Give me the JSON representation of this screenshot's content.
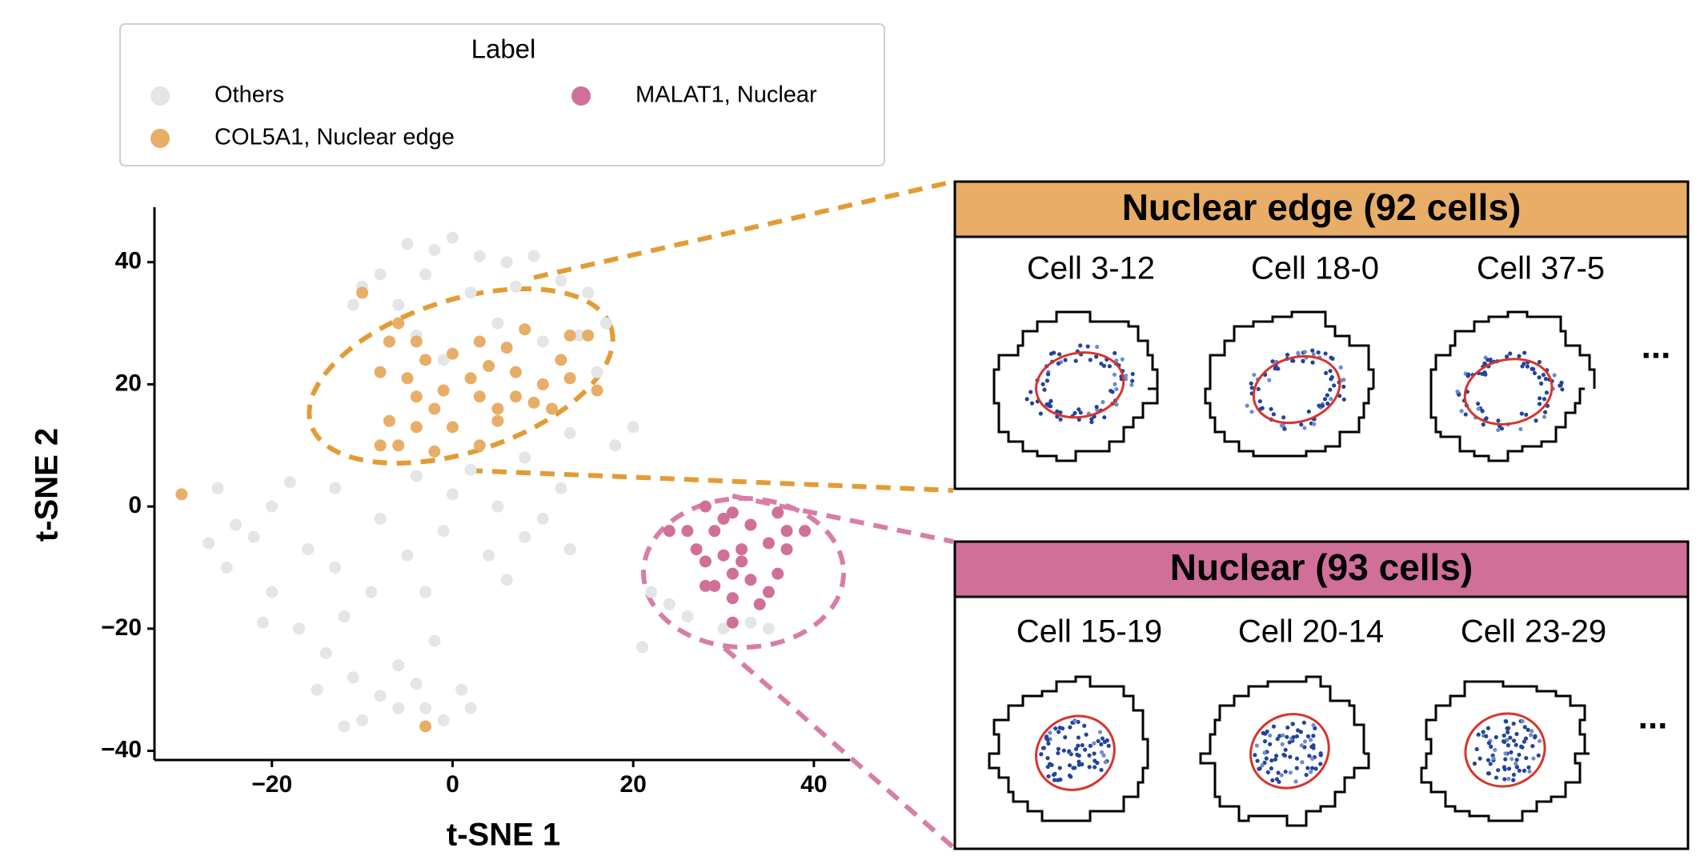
{
  "chart_data": {
    "type": "scatter",
    "xlabel": "t-SNE 1",
    "ylabel": "t-SNE 2",
    "legend_title": "Label",
    "xlim": [
      -33,
      44
    ],
    "ylim": [
      -41.5,
      49
    ],
    "xticks": [
      {
        "value": -20,
        "label": "−20"
      },
      0,
      20,
      40
    ],
    "yticks": [
      {
        "value": -40,
        "label": "−40"
      },
      {
        "value": -20,
        "label": "−20"
      },
      0,
      20,
      40
    ],
    "series": [
      {
        "name": "Others",
        "color": "#e3e5e6",
        "x": [
          -5,
          -2,
          0,
          3,
          6,
          9,
          -8,
          -10,
          -3,
          12,
          15,
          -11,
          7,
          -6,
          2,
          17,
          14,
          -4,
          5,
          10,
          -1,
          16,
          20,
          18,
          13,
          8,
          2,
          -4,
          -13,
          0,
          5,
          10,
          12,
          -1,
          4,
          -5,
          -26,
          -24,
          -22,
          -20,
          -18,
          -16,
          -13,
          -25,
          -20,
          -17,
          -12,
          -9,
          -14,
          -11,
          -8,
          -6,
          -3,
          -10,
          -12,
          -6,
          -2,
          -4,
          1,
          2,
          -1,
          -15,
          -21,
          -27,
          -3,
          8,
          22,
          24,
          26,
          33,
          35,
          30,
          21,
          13,
          -8,
          6
        ],
        "values": [
          43,
          42,
          44,
          41,
          40,
          41,
          38,
          36,
          38,
          37,
          35,
          33,
          36,
          33,
          35,
          30,
          28,
          28,
          30,
          27,
          24,
          22,
          13,
          10,
          12,
          8,
          6,
          5,
          3,
          2,
          0,
          -2,
          3,
          -4,
          -8,
          -8,
          3,
          -3,
          -5,
          0,
          4,
          -7,
          -10,
          -10,
          -14,
          -20,
          -18,
          -14,
          -24,
          -28,
          -31,
          -33,
          -33,
          -35,
          -36,
          -26,
          -22,
          -29,
          -30,
          -33,
          -35,
          -30,
          -19,
          -6,
          -14,
          -5,
          -14,
          -16,
          -18,
          -19,
          -20,
          -20,
          -23,
          -7,
          -2,
          -12
        ]
      },
      {
        "name": "COL5A1, Nuclear edge",
        "color": "#e8ae68",
        "x": [
          -10,
          -30,
          -4,
          -7,
          -3,
          0,
          -5,
          -8,
          -1,
          2,
          3,
          6,
          7,
          10,
          12,
          13,
          15,
          13,
          11,
          16,
          9,
          5,
          3,
          -4,
          -7,
          -6,
          -8,
          -2,
          3,
          5,
          7,
          -2,
          -4,
          0,
          -3,
          8,
          -6,
          4
        ],
        "values": [
          35,
          2,
          27,
          27,
          24,
          25,
          21,
          22,
          19,
          21,
          27,
          26,
          22,
          20,
          24,
          28,
          28,
          21,
          16,
          19,
          17,
          16,
          18,
          13,
          14,
          10,
          10,
          9,
          10,
          14,
          18,
          16,
          18,
          13,
          -36,
          29,
          30,
          23
        ]
      },
      {
        "name": "MALAT1, Nuclear",
        "color": "#d07099",
        "x": [
          28,
          31,
          26,
          29,
          33,
          36,
          37,
          39,
          35,
          32,
          30,
          28,
          31,
          33,
          29,
          31,
          34,
          35,
          27,
          24,
          37,
          30,
          32,
          28,
          36,
          31
        ],
        "values": [
          0,
          -1,
          -4,
          -4,
          -3,
          -1,
          -4,
          -4,
          -6,
          -7,
          -8,
          -9,
          -11,
          -12,
          -13,
          -15,
          -16,
          -14,
          -7,
          -4,
          -7,
          -2,
          -9,
          -13,
          -11,
          -19
        ]
      }
    ]
  },
  "panels": [
    {
      "title": "Nuclear edge (92 cells)",
      "cells": [
        "Cell 3-12",
        "Cell 18-0",
        "Cell 37-5"
      ],
      "more": "..."
    },
    {
      "title": "Nuclear (93 cells)",
      "cells": [
        "Cell 15-19",
        "Cell 20-14",
        "Cell 23-29"
      ],
      "more": "..."
    }
  ]
}
